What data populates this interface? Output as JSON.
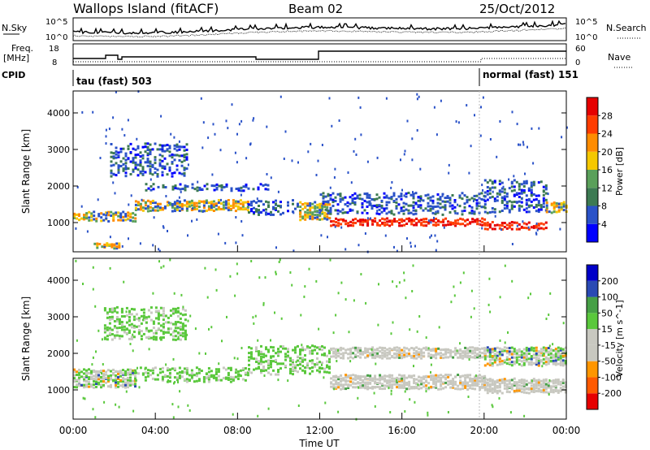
{
  "header": {
    "title": "Wallops Island (fitACF)",
    "beam": "Beam 02",
    "date": "25/Oct/2012"
  },
  "labels": {
    "nsky": "N.Sky",
    "nsky_top": "10^5",
    "nsky_bottom": "10^0",
    "nsearch": "N.Search",
    "nsearch_top": "10^5",
    "nsearch_bottom": "10^0",
    "freq": "Freq.",
    "freq_unit": "[MHz]",
    "freq_top": "18",
    "freq_bottom": "8",
    "nave": "Nave",
    "nave_top": "60",
    "nave_bottom": "0",
    "cpid": "CPID",
    "cpid_mode1": "tau (fast) 503",
    "cpid_mode2": "normal (fast) 151"
  },
  "colors": {
    "power": [
      "#0000ff",
      "#2a52c8",
      "#3c7a52",
      "#5aa05a",
      "#f5c800",
      "#ff8c00",
      "#ff3c00",
      "#e60000"
    ],
    "velocity": [
      "#e60000",
      "#ff5a00",
      "#ff9600",
      "#c8c8c0",
      "#c8c8c0",
      "#5ac83c",
      "#46a046",
      "#2a4ab4",
      "#0000c8"
    ]
  },
  "chart_data": [
    {
      "type": "heatmap",
      "ylabel": "Slant Range [km]",
      "yticks": [
        "1000",
        "2000",
        "3000",
        "4000"
      ],
      "ylim": [
        200,
        4600
      ],
      "xlim_hours": [
        0,
        24
      ],
      "colorbar_label": "Power [dB]",
      "colorbar_ticks": [
        "4",
        "8",
        "12",
        "16",
        "20",
        "24",
        "28"
      ],
      "colorbar_range": [
        0,
        32
      ],
      "bands": [
        {
          "start_h": 0.0,
          "end_h": 0.6,
          "range_km": 1150,
          "width_km": 180,
          "level": "high"
        },
        {
          "start_h": 0.6,
          "end_h": 3.0,
          "range_km": 1150,
          "width_km": 260,
          "level": "high"
        },
        {
          "start_h": 1.0,
          "end_h": 2.2,
          "range_km": 350,
          "width_km": 150,
          "level": "high"
        },
        {
          "start_h": 1.8,
          "end_h": 5.5,
          "range_km": 2700,
          "width_km": 900,
          "level": "low"
        },
        {
          "start_h": 3.0,
          "end_h": 8.5,
          "range_km": 1450,
          "width_km": 300,
          "level": "high"
        },
        {
          "start_h": 3.5,
          "end_h": 9.5,
          "range_km": 1950,
          "width_km": 200,
          "level": "low"
        },
        {
          "start_h": 8.5,
          "end_h": 11.0,
          "range_km": 1400,
          "width_km": 400,
          "level": "low"
        },
        {
          "start_h": 11.0,
          "end_h": 12.5,
          "range_km": 1300,
          "width_km": 500,
          "level": "high"
        },
        {
          "start_h": 12.5,
          "end_h": 20.0,
          "range_km": 1000,
          "width_km": 200,
          "level": "max"
        },
        {
          "start_h": 12.0,
          "end_h": 20.0,
          "range_km": 1500,
          "width_km": 600,
          "level": "low"
        },
        {
          "start_h": 20.0,
          "end_h": 23.0,
          "range_km": 900,
          "width_km": 200,
          "level": "max"
        },
        {
          "start_h": 20.0,
          "end_h": 23.0,
          "range_km": 1700,
          "width_km": 900,
          "level": "low"
        },
        {
          "start_h": 23.0,
          "end_h": 24.0,
          "range_km": 1400,
          "width_km": 300,
          "level": "high"
        }
      ]
    },
    {
      "type": "heatmap",
      "ylabel": "Slant Range [km]",
      "xlabel": "Time UT",
      "xticks": [
        "00:00",
        "04:00",
        "08:00",
        "12:00",
        "16:00",
        "20:00",
        "00:00"
      ],
      "yticks": [
        "1000",
        "2000",
        "3000",
        "4000"
      ],
      "ylim": [
        200,
        4600
      ],
      "xlim_hours": [
        0,
        24
      ],
      "colorbar_label": "Velocity [m s^-1]",
      "colorbar_ticks": [
        "200",
        "100",
        "50",
        "15",
        "-15",
        "-50",
        "-100",
        "-200"
      ],
      "colorbar_range": [
        -250,
        250
      ],
      "bands": [
        {
          "start_h": 0.0,
          "end_h": 3.0,
          "range_km": 1300,
          "width_km": 500,
          "level": "mixed"
        },
        {
          "start_h": 3.0,
          "end_h": 8.5,
          "range_km": 1400,
          "width_km": 400,
          "level": "green"
        },
        {
          "start_h": 1.5,
          "end_h": 5.5,
          "range_km": 2800,
          "width_km": 900,
          "level": "green"
        },
        {
          "start_h": 8.5,
          "end_h": 12.5,
          "range_km": 1800,
          "width_km": 800,
          "level": "green"
        },
        {
          "start_h": 12.5,
          "end_h": 20.0,
          "range_km": 1200,
          "width_km": 400,
          "level": "grey"
        },
        {
          "start_h": 12.5,
          "end_h": 20.0,
          "range_km": 2000,
          "width_km": 300,
          "level": "grey"
        },
        {
          "start_h": 20.0,
          "end_h": 24.0,
          "range_km": 1100,
          "width_km": 400,
          "level": "grey"
        },
        {
          "start_h": 20.0,
          "end_h": 24.0,
          "range_km": 1900,
          "width_km": 500,
          "level": "mixed"
        }
      ]
    }
  ]
}
